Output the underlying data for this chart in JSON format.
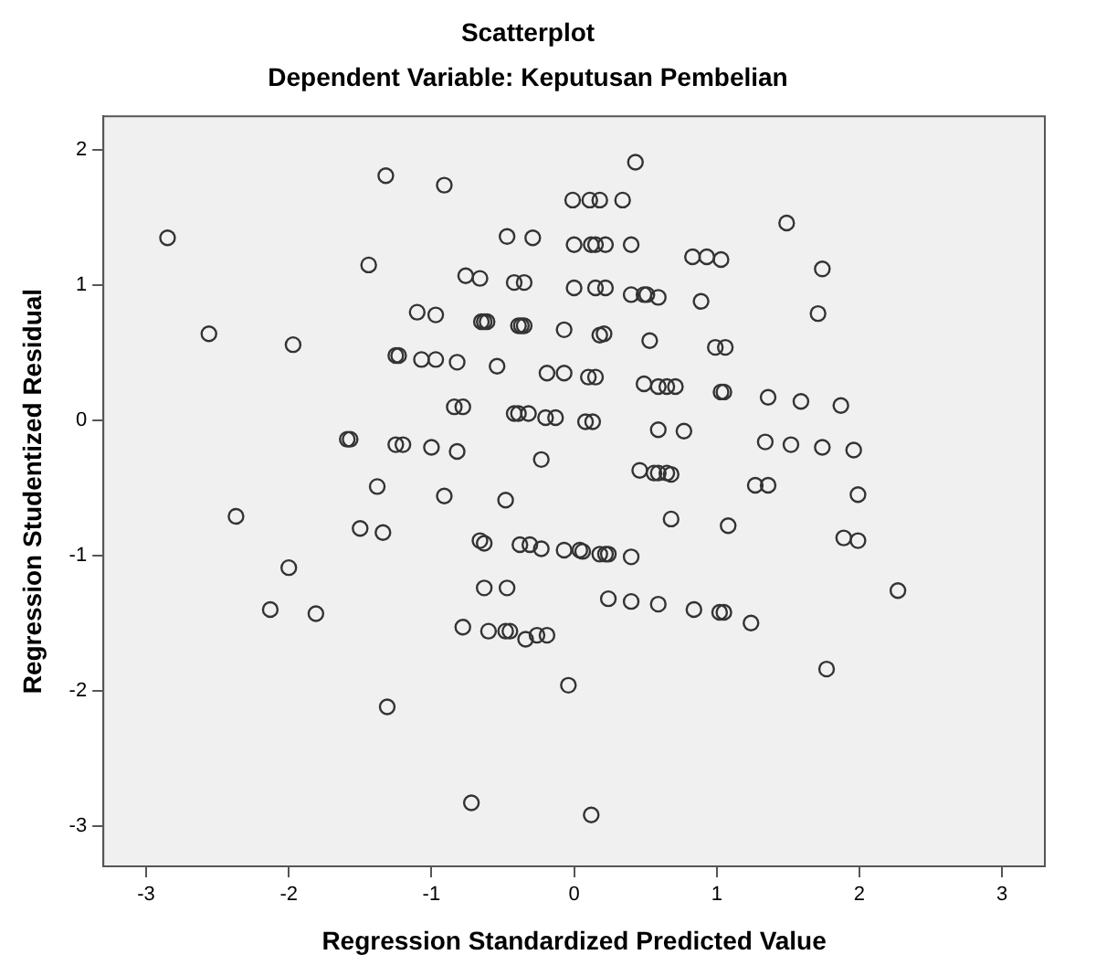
{
  "chart_data": {
    "type": "scatter",
    "title": "Scatterplot",
    "subtitle": "Dependent Variable: Keputusan Pembelian",
    "xlabel": "Regression Standardized Predicted Value",
    "ylabel": "Regression Studentized Residual",
    "xlim": [
      -3.3,
      3.3
    ],
    "ylim": [
      -3.3,
      2.25
    ],
    "xticks": [
      -3,
      -2,
      -1,
      0,
      1,
      2,
      3
    ],
    "yticks": [
      -3,
      -2,
      -1,
      0,
      1,
      2
    ],
    "grid": false,
    "marker": "circle",
    "series": [
      {
        "color": "#333333",
        "x": [
          0.43,
          -1.32,
          -0.91,
          1.49,
          -0.01,
          0.11,
          0.18,
          0.34,
          -2.85,
          -0.47,
          -0.29,
          0.0,
          0.12,
          0.15,
          0.22,
          0.4,
          0.83,
          0.93,
          1.03,
          1.74,
          -1.44,
          -0.76,
          -0.66,
          -0.42,
          -0.35,
          0.0,
          0.15,
          0.22,
          0.4,
          0.49,
          0.51,
          0.59,
          0.89,
          1.71,
          -1.1,
          -0.97,
          -0.65,
          -0.63,
          -0.61,
          -0.39,
          -0.37,
          -0.35,
          -0.07,
          0.18,
          0.21,
          0.53,
          0.99,
          1.06,
          -1.25,
          -1.23,
          -1.07,
          -0.97,
          -0.82,
          -0.54,
          -0.19,
          -0.07,
          -2.56,
          -1.97,
          0.1,
          0.15,
          0.49,
          0.59,
          0.65,
          0.71,
          1.03,
          1.05,
          1.36,
          1.59,
          1.87,
          -0.84,
          -0.78,
          -0.42,
          -0.39,
          -0.32,
          -0.2,
          -0.13,
          0.08,
          0.13,
          0.59,
          0.77,
          1.34,
          1.52,
          1.74,
          1.96,
          -1.59,
          -1.57,
          -1.25,
          -1.2,
          -1.0,
          -0.82,
          -0.23,
          0.46,
          0.56,
          0.59,
          0.65,
          0.68,
          1.27,
          1.36,
          1.99,
          -1.38,
          -2.37,
          -0.91,
          -0.48,
          -1.5,
          -1.34,
          -0.66,
          -0.63,
          -0.38,
          -0.31,
          -0.23,
          -0.07,
          0.04,
          0.06,
          0.18,
          0.22,
          0.24,
          0.4,
          0.68,
          1.08,
          1.89,
          1.99,
          2.27,
          0.24,
          0.4,
          0.59,
          0.84,
          1.02,
          1.05,
          1.24,
          1.77,
          -0.04,
          0.12,
          -2.0,
          -2.13,
          -1.81,
          -0.63,
          -0.47,
          -0.78,
          -0.6,
          -0.48,
          -0.45,
          -0.34,
          -0.26,
          -0.19,
          -1.31,
          -0.72
        ],
        "values": [
          1.91,
          1.81,
          1.74,
          1.46,
          1.63,
          1.63,
          1.63,
          1.63,
          1.35,
          1.36,
          1.35,
          1.3,
          1.3,
          1.3,
          1.3,
          1.3,
          1.21,
          1.21,
          1.19,
          1.12,
          1.15,
          1.07,
          1.05,
          1.02,
          1.02,
          0.98,
          0.98,
          0.98,
          0.93,
          0.93,
          0.93,
          0.91,
          0.88,
          0.79,
          0.8,
          0.78,
          0.73,
          0.73,
          0.73,
          0.7,
          0.7,
          0.7,
          0.67,
          0.63,
          0.64,
          0.59,
          0.54,
          0.54,
          0.48,
          0.48,
          0.45,
          0.45,
          0.43,
          0.4,
          0.35,
          0.35,
          0.64,
          0.56,
          0.32,
          0.32,
          0.27,
          0.25,
          0.25,
          0.25,
          0.21,
          0.21,
          0.17,
          0.14,
          0.11,
          0.1,
          0.1,
          0.05,
          0.05,
          0.05,
          0.02,
          0.02,
          -0.01,
          -0.01,
          -0.07,
          -0.08,
          -0.16,
          -0.18,
          -0.2,
          -0.22,
          -0.14,
          -0.14,
          -0.18,
          -0.18,
          -0.2,
          -0.23,
          -0.29,
          -0.37,
          -0.39,
          -0.39,
          -0.39,
          -0.4,
          -0.48,
          -0.48,
          -0.55,
          -0.49,
          -0.71,
          -0.56,
          -0.59,
          -0.8,
          -0.83,
          -0.89,
          -0.91,
          -0.92,
          -0.92,
          -0.95,
          -0.96,
          -0.96,
          -0.97,
          -0.99,
          -0.99,
          -0.99,
          -1.01,
          -0.73,
          -0.78,
          -0.87,
          -0.89,
          -1.26,
          -1.32,
          -1.34,
          -1.36,
          -1.4,
          -1.42,
          -1.42,
          -1.5,
          -1.84,
          -1.96,
          -2.92,
          -1.09,
          -1.4,
          -1.43,
          -1.24,
          -1.24,
          -1.53,
          -1.56,
          -1.56,
          -1.56,
          -1.62,
          -1.59,
          -1.59,
          -2.12,
          -2.83
        ]
      }
    ]
  }
}
